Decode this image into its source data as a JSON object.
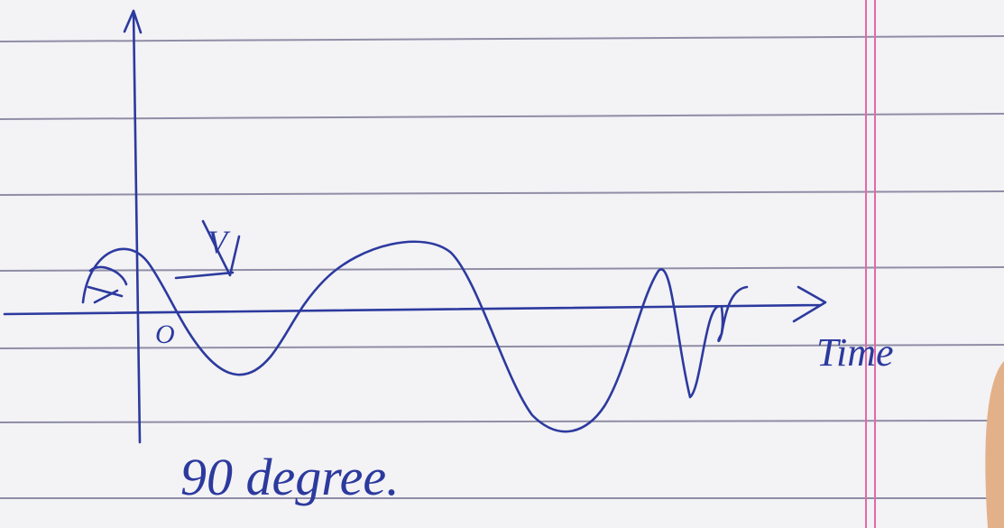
{
  "labels": {
    "arrow_label": "V",
    "origin": "O",
    "axis": "Time",
    "caption": "90 degree."
  }
}
